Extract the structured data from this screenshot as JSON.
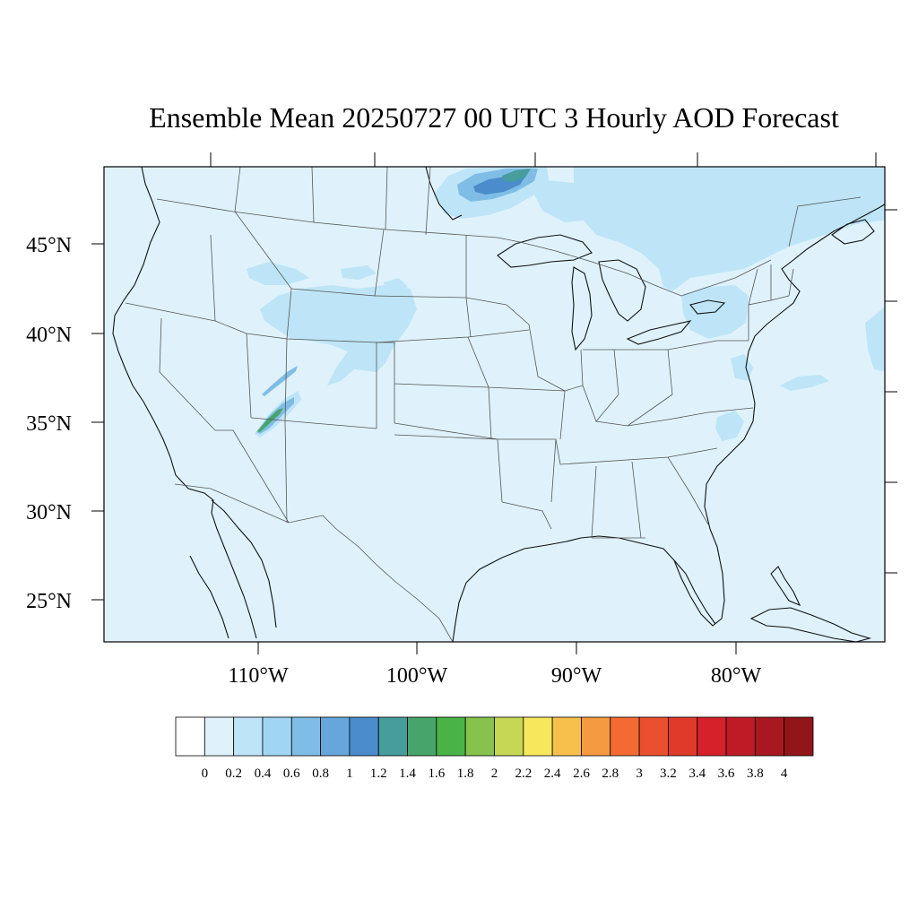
{
  "title": "Ensemble Mean 20250727 00 UTC 3 Hourly AOD Forecast",
  "map": {
    "background_color": "#dff2fb",
    "lat_labels": [
      "45°N",
      "40°N",
      "35°N",
      "30°N",
      "25°N"
    ],
    "lon_labels": [
      "110°W",
      "100°W",
      "90°W",
      "80°W"
    ]
  },
  "colorbar": {
    "labels": [
      "0",
      "0.2",
      "0.4",
      "0.6",
      "0.8",
      "1",
      "1.2",
      "1.4",
      "1.6",
      "1.8",
      "2",
      "2.2",
      "2.4",
      "2.6",
      "2.8",
      "3",
      "3.2",
      "3.4",
      "3.6",
      "3.8",
      "4"
    ],
    "colors": [
      "#ffffff",
      "#dff2fb",
      "#bde5f7",
      "#a0d6f3",
      "#80bde6",
      "#67a6db",
      "#4a8ccc",
      "#479c9c",
      "#47a56b",
      "#4ab347",
      "#86c24c",
      "#c6d655",
      "#f7e75d",
      "#f7c04c",
      "#f59a40",
      "#f36b32",
      "#ea5030",
      "#e03a2b",
      "#d6202a",
      "#bd1c26",
      "#a8181f",
      "#921519"
    ]
  }
}
